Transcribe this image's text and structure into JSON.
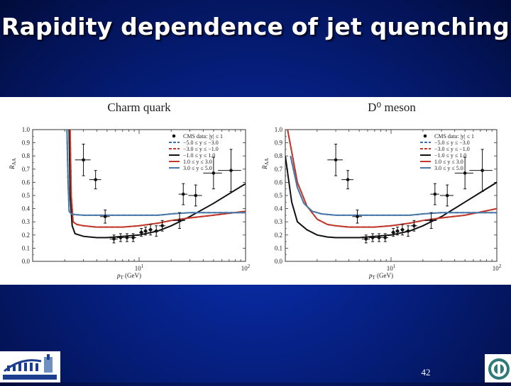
{
  "slide": {
    "title": "Rapidity dependence of jet quenching",
    "page_number": "42"
  },
  "colors": {
    "background": "#05208a",
    "cms": "#111111",
    "rap_-5.0_-3.0": "#3b6fb0",
    "rap_-3.0_-1.0": "#c0392b",
    "rap_-1.0_1.0": "#111111",
    "rap_1.0_3.0": "#c0392b",
    "rap_3.0_5.0": "#4a78a8"
  },
  "chart_data": [
    {
      "type": "line",
      "title": "Charm quark",
      "xlabel": "p_T (GeV)",
      "ylabel": "R_AA",
      "xscale": "log",
      "xlim": [
        1,
        100
      ],
      "ylim": [
        0.0,
        1.0
      ],
      "xticklabels": [
        "10^1",
        "10^2"
      ],
      "yticks": [
        0.0,
        0.1,
        0.2,
        0.3,
        0.4,
        0.5,
        0.6,
        0.7,
        0.8,
        0.9,
        1.0
      ],
      "legend_position": "top-right",
      "points": {
        "name": "CMS data: |y| ≤ 1",
        "x": [
          3.0,
          3.9,
          4.8,
          5.8,
          6.7,
          7.7,
          8.8,
          10.5,
          11.5,
          12.8,
          14.5,
          16.5,
          24.0,
          26.0,
          34.0,
          50.0,
          73.0
        ],
        "y": [
          0.77,
          0.62,
          0.34,
          0.17,
          0.18,
          0.18,
          0.18,
          0.22,
          0.23,
          0.24,
          0.23,
          0.27,
          0.31,
          0.51,
          0.5,
          0.67,
          0.69
        ],
        "xerr": [
          0.5,
          0.5,
          0.5,
          0.5,
          0.5,
          0.5,
          0.6,
          0.5,
          0.5,
          0.6,
          0.8,
          1.2,
          3.0,
          2.5,
          5.0,
          10.0,
          18.0
        ],
        "yerr": [
          0.12,
          0.07,
          0.05,
          0.03,
          0.03,
          0.03,
          0.03,
          0.03,
          0.03,
          0.04,
          0.04,
          0.04,
          0.06,
          0.08,
          0.08,
          0.12,
          0.16
        ]
      },
      "series": [
        {
          "name": "−5.0 ≤ y ≤ −3.0",
          "style": "dashed",
          "color_key": "rap_-5.0_-3.0",
          "x": [
            2.1,
            2.15,
            2.2,
            2.3,
            2.5,
            3,
            4,
            5,
            7,
            10,
            15,
            20,
            30,
            50,
            100
          ],
          "y": [
            1.0,
            0.6,
            0.38,
            0.36,
            0.355,
            0.35,
            0.35,
            0.35,
            0.35,
            0.35,
            0.35,
            0.36,
            0.37,
            0.37,
            0.37
          ]
        },
        {
          "name": "−3.0 ≤ y ≤ −1.0",
          "style": "dashed",
          "color_key": "rap_-3.0_-1.0",
          "x": [
            2.25,
            2.3,
            2.4,
            2.6,
            3,
            4,
            5,
            7,
            10,
            15,
            20,
            30,
            50,
            100
          ],
          "y": [
            1.0,
            0.5,
            0.3,
            0.28,
            0.27,
            0.26,
            0.26,
            0.26,
            0.27,
            0.29,
            0.31,
            0.33,
            0.35,
            0.38
          ]
        },
        {
          "name": "−1.0 ≤ y ≤ 1.0",
          "style": "solid",
          "color_key": "rap_-1.0_1.0",
          "x": [
            2.2,
            2.25,
            2.35,
            2.5,
            3,
            4,
            5,
            7,
            10,
            15,
            20,
            30,
            50,
            100
          ],
          "y": [
            1.0,
            0.5,
            0.27,
            0.21,
            0.19,
            0.18,
            0.18,
            0.19,
            0.2,
            0.23,
            0.27,
            0.34,
            0.44,
            0.59
          ]
        },
        {
          "name": "1.0 ≤ y ≤ 3.0",
          "style": "solid",
          "color_key": "rap_1.0_3.0",
          "x": [
            2.25,
            2.3,
            2.4,
            2.6,
            3,
            4,
            5,
            7,
            10,
            15,
            20,
            30,
            50,
            100
          ],
          "y": [
            1.0,
            0.5,
            0.3,
            0.28,
            0.27,
            0.26,
            0.26,
            0.26,
            0.27,
            0.29,
            0.31,
            0.33,
            0.35,
            0.38
          ]
        },
        {
          "name": "3.0 ≤ y ≤ 5.0",
          "style": "solid",
          "color_key": "rap_3.0_5.0",
          "x": [
            2.1,
            2.15,
            2.2,
            2.3,
            2.5,
            3,
            4,
            5,
            7,
            10,
            15,
            20,
            30,
            50,
            100
          ],
          "y": [
            1.0,
            0.6,
            0.38,
            0.36,
            0.355,
            0.35,
            0.35,
            0.35,
            0.35,
            0.35,
            0.35,
            0.36,
            0.37,
            0.37,
            0.37
          ]
        }
      ]
    },
    {
      "type": "line",
      "title": "D⁰ meson",
      "xlabel": "p_T (GeV)",
      "ylabel": "R_AA",
      "xscale": "log",
      "xlim": [
        1,
        100
      ],
      "ylim": [
        0.0,
        1.0
      ],
      "xticklabels": [
        "10^1",
        "10^2"
      ],
      "yticks": [
        0.0,
        0.1,
        0.2,
        0.3,
        0.4,
        0.5,
        0.6,
        0.7,
        0.8,
        0.9,
        1.0
      ],
      "legend_position": "top-right",
      "points": {
        "name": "CMS data: |y| ≤ 1",
        "x": [
          3.0,
          3.9,
          4.8,
          5.8,
          6.7,
          7.7,
          8.8,
          10.5,
          11.5,
          12.8,
          14.5,
          16.5,
          24.0,
          26.0,
          34.0,
          50.0,
          73.0
        ],
        "y": [
          0.77,
          0.62,
          0.34,
          0.17,
          0.18,
          0.18,
          0.18,
          0.22,
          0.23,
          0.24,
          0.23,
          0.27,
          0.31,
          0.51,
          0.5,
          0.67,
          0.69
        ],
        "xerr": [
          0.5,
          0.5,
          0.5,
          0.5,
          0.5,
          0.5,
          0.6,
          0.5,
          0.5,
          0.6,
          0.8,
          1.2,
          3.0,
          2.5,
          5.0,
          10.0,
          18.0
        ],
        "yerr": [
          0.12,
          0.07,
          0.05,
          0.03,
          0.03,
          0.03,
          0.03,
          0.03,
          0.03,
          0.04,
          0.04,
          0.04,
          0.06,
          0.08,
          0.08,
          0.12,
          0.16
        ]
      },
      "series": [
        {
          "name": "−5.0 ≤ y ≤ −3.0",
          "style": "dashed",
          "color_key": "rap_-5.0_-3.0",
          "x": [
            1.12,
            1.3,
            1.5,
            1.8,
            2.2,
            2.6,
            3,
            4,
            5,
            7,
            10,
            15,
            20,
            30,
            50,
            100
          ],
          "y": [
            0.8,
            0.56,
            0.44,
            0.38,
            0.36,
            0.355,
            0.35,
            0.35,
            0.35,
            0.35,
            0.35,
            0.35,
            0.36,
            0.37,
            0.37,
            0.37
          ]
        },
        {
          "name": "−3.0 ≤ y ≤ −1.0",
          "style": "dashed",
          "color_key": "rap_-3.0_-1.0",
          "x": [
            1.05,
            1.3,
            1.6,
            2,
            2.5,
            3,
            4,
            5,
            7,
            10,
            15,
            20,
            30,
            50,
            100
          ],
          "y": [
            1.0,
            0.6,
            0.42,
            0.32,
            0.28,
            0.27,
            0.26,
            0.26,
            0.26,
            0.27,
            0.29,
            0.31,
            0.33,
            0.35,
            0.4
          ]
        },
        {
          "name": "−1.0 ≤ y ≤ 1.0",
          "style": "solid",
          "color_key": "rap_-1.0_1.0",
          "x": [
            1.0,
            1.15,
            1.3,
            1.6,
            2,
            2.5,
            3,
            4,
            5,
            7,
            10,
            15,
            20,
            30,
            50,
            100
          ],
          "y": [
            0.8,
            0.45,
            0.3,
            0.24,
            0.2,
            0.185,
            0.18,
            0.18,
            0.18,
            0.19,
            0.2,
            0.23,
            0.27,
            0.34,
            0.45,
            0.6
          ]
        },
        {
          "name": "1.0 ≤ y ≤ 3.0",
          "style": "solid",
          "color_key": "rap_1.0_3.0",
          "x": [
            1.05,
            1.3,
            1.6,
            2,
            2.5,
            3,
            4,
            5,
            7,
            10,
            15,
            20,
            30,
            50,
            100
          ],
          "y": [
            1.0,
            0.6,
            0.42,
            0.32,
            0.28,
            0.27,
            0.26,
            0.26,
            0.26,
            0.27,
            0.29,
            0.31,
            0.33,
            0.35,
            0.4
          ]
        },
        {
          "name": "3.0 ≤ y ≤ 5.0",
          "style": "solid",
          "color_key": "rap_3.0_5.0",
          "x": [
            1.12,
            1.3,
            1.5,
            1.8,
            2.2,
            2.6,
            3,
            4,
            5,
            7,
            10,
            15,
            20,
            30,
            50,
            100
          ],
          "y": [
            0.8,
            0.56,
            0.44,
            0.38,
            0.36,
            0.355,
            0.35,
            0.35,
            0.35,
            0.35,
            0.35,
            0.35,
            0.36,
            0.37,
            0.37,
            0.37
          ]
        }
      ]
    }
  ]
}
